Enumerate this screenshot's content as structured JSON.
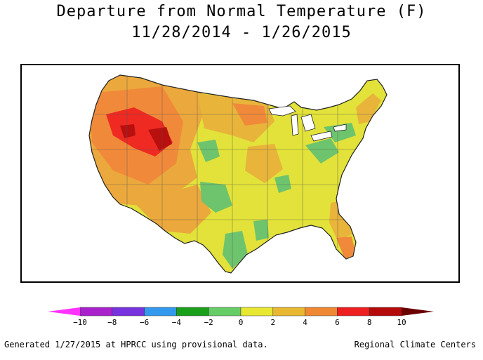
{
  "title": "Departure from Normal Temperature (F)",
  "subtitle": "11/28/2014 - 1/26/2015",
  "legend": {
    "ticks": [
      "−10",
      "−8",
      "−6",
      "−4",
      "−2",
      "0",
      "2",
      "4",
      "6",
      "8",
      "10"
    ],
    "colors": [
      "#ff33ff",
      "#aa22cc",
      "#7733dd",
      "#3399ee",
      "#1a9f1a",
      "#66cc66",
      "#e8e833",
      "#e8b833",
      "#f08833",
      "#ee1f1f",
      "#b50a0a",
      "#6a0000"
    ]
  },
  "footer": {
    "left": "Generated 1/27/2015 at HPRCC using provisional data.",
    "right": "Regional Climate Centers"
  }
}
